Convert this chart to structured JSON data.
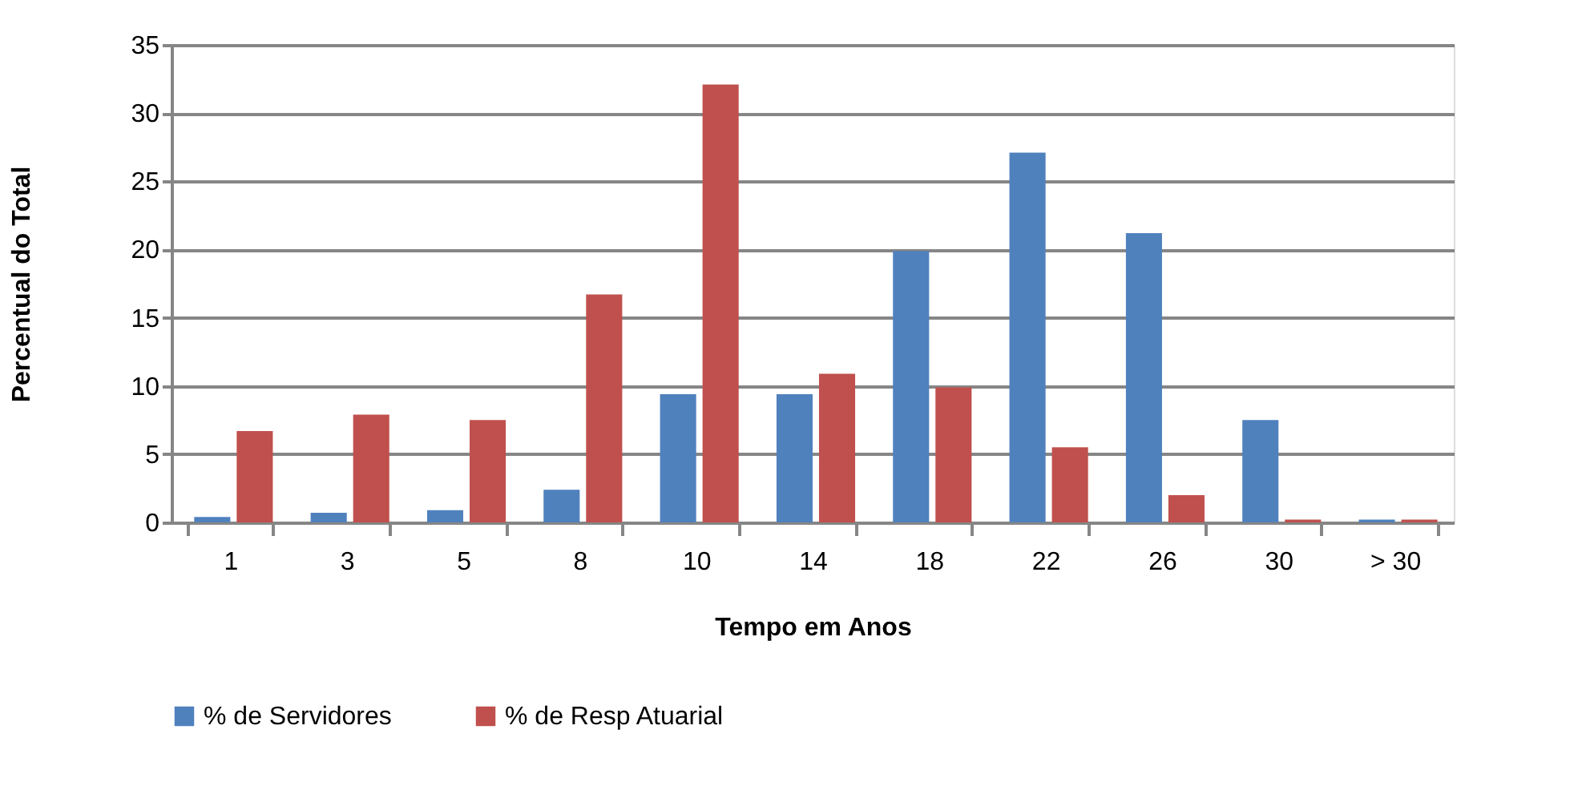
{
  "chart_data": {
    "type": "bar",
    "xlabel": "Tempo em Anos",
    "ylabel": "Percentual do Total",
    "categories": [
      "1",
      "3",
      "5",
      "8",
      "10",
      "14",
      "18",
      "22",
      "26",
      "30",
      "> 30"
    ],
    "series": [
      {
        "name": "% de Servidores",
        "color": "#4f81bd",
        "values": [
          0.4,
          0.7,
          0.9,
          2.4,
          9.4,
          9.4,
          19.9,
          27.1,
          21.2,
          7.5,
          0.2
        ]
      },
      {
        "name": "% de Resp Atuarial",
        "color": "#c0504d",
        "values": [
          6.7,
          7.9,
          7.5,
          16.7,
          32.1,
          10.9,
          9.9,
          5.5,
          2.0,
          0.2,
          0.2
        ]
      }
    ],
    "ylim": [
      0,
      35
    ],
    "yticks": [
      0,
      5,
      10,
      15,
      20,
      25,
      30,
      35
    ],
    "grid": "y",
    "legend": "bottom"
  }
}
